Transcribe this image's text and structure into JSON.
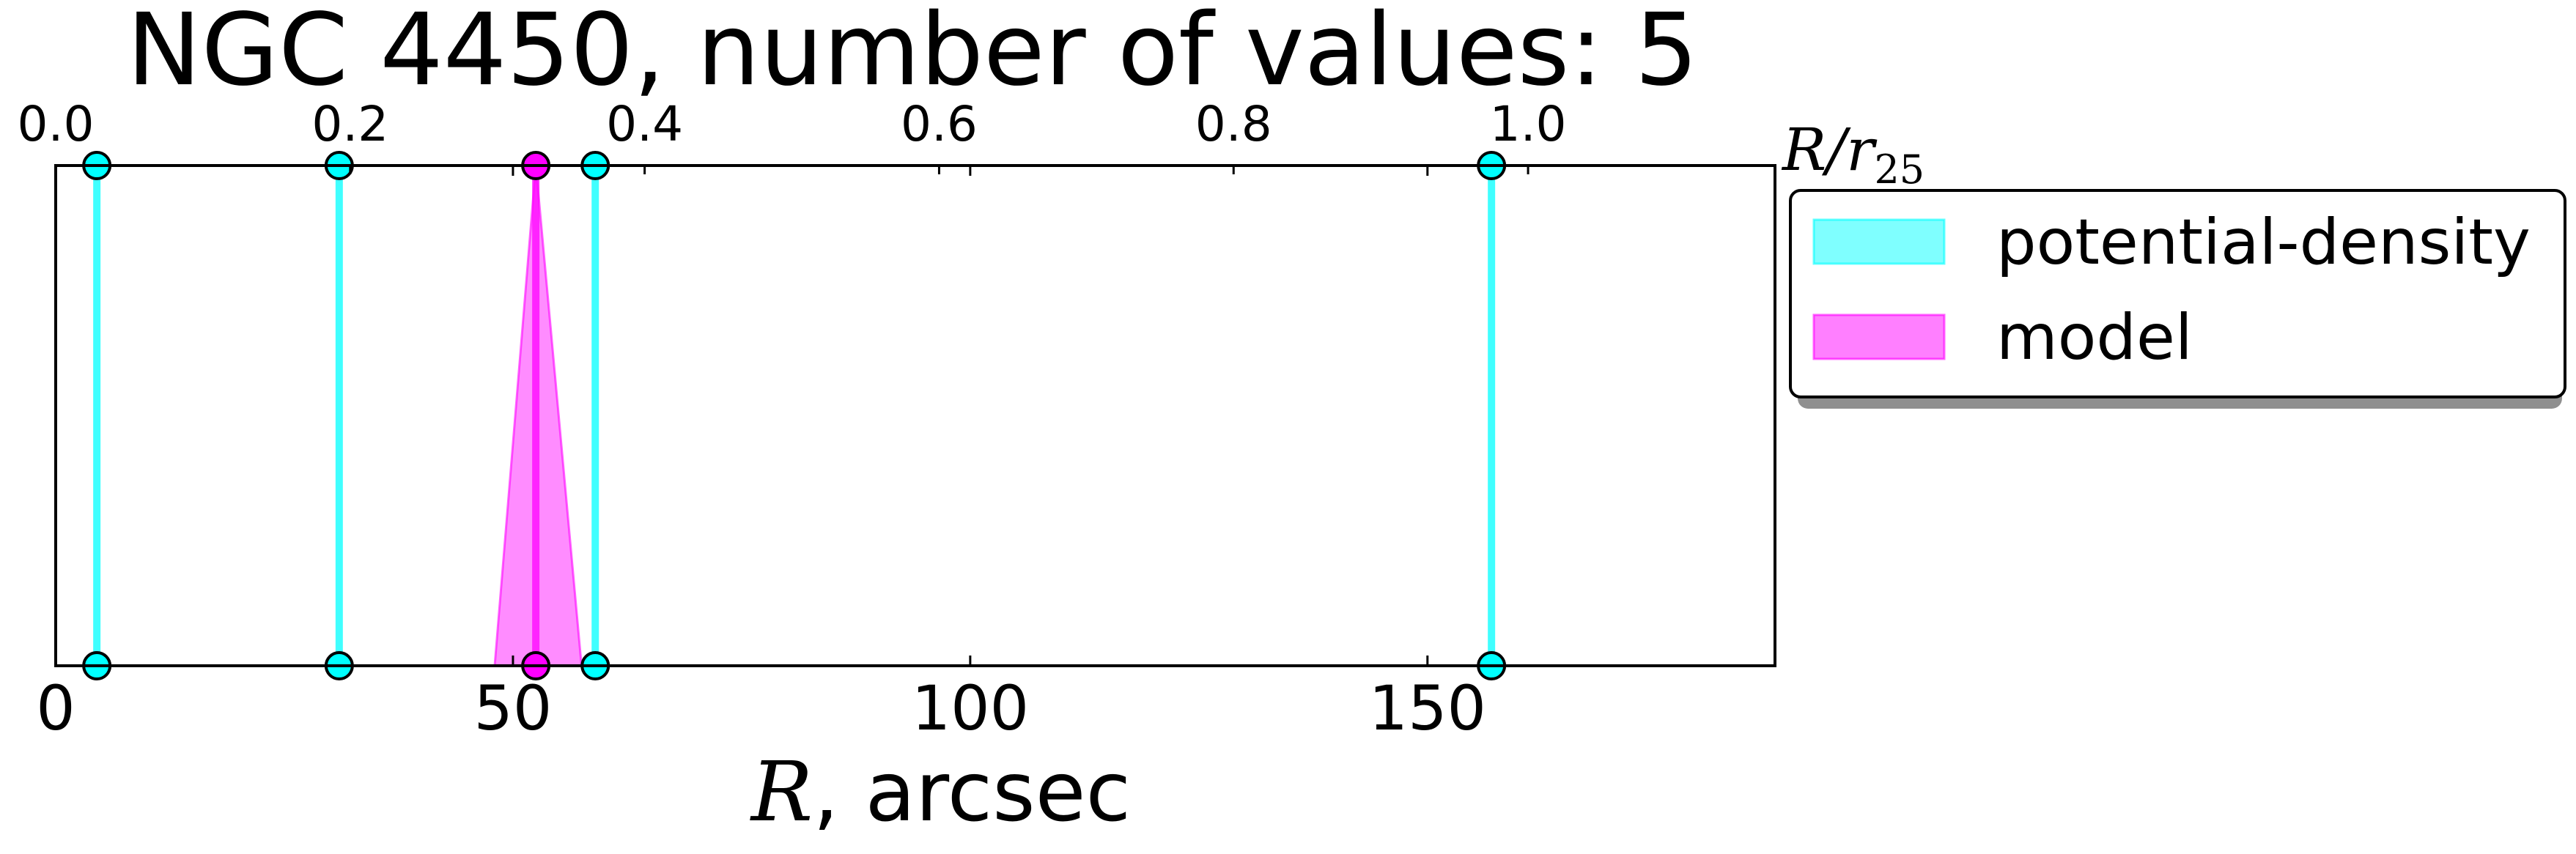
{
  "chart_data": {
    "type": "line",
    "title": "NGC 4450, number of values: 5",
    "xlabel": {
      "symbol": "R",
      "rest": ", arcsec"
    },
    "xlim": [
      0,
      188
    ],
    "xticks": [
      {
        "value": 0,
        "label": "0"
      },
      {
        "value": 50,
        "label": "50"
      },
      {
        "value": 100,
        "label": "100"
      },
      {
        "value": 150,
        "label": "150"
      }
    ],
    "top_axis": {
      "label": {
        "symbol": "R/r",
        "sub": "25"
      },
      "scale_r25_arcsec": 161,
      "ticks": [
        {
          "value": 0.0,
          "label": "0.0"
        },
        {
          "value": 0.2,
          "label": "0.2"
        },
        {
          "value": 0.4,
          "label": "0.4"
        },
        {
          "value": 0.6,
          "label": "0.6"
        },
        {
          "value": 0.8,
          "label": "0.8"
        },
        {
          "value": 1.0,
          "label": "1.0"
        }
      ]
    },
    "grid": false,
    "legend_position": "outside-right-top",
    "series": [
      {
        "name": "potential-density",
        "color": "#00ffff",
        "values": [
          4.5,
          31.0,
          59.0,
          157.0
        ]
      },
      {
        "name": "model",
        "color": "#ff00ff",
        "values": [
          52.5
        ],
        "spread": [
          [
            48.0,
            57.5
          ]
        ]
      }
    ]
  }
}
